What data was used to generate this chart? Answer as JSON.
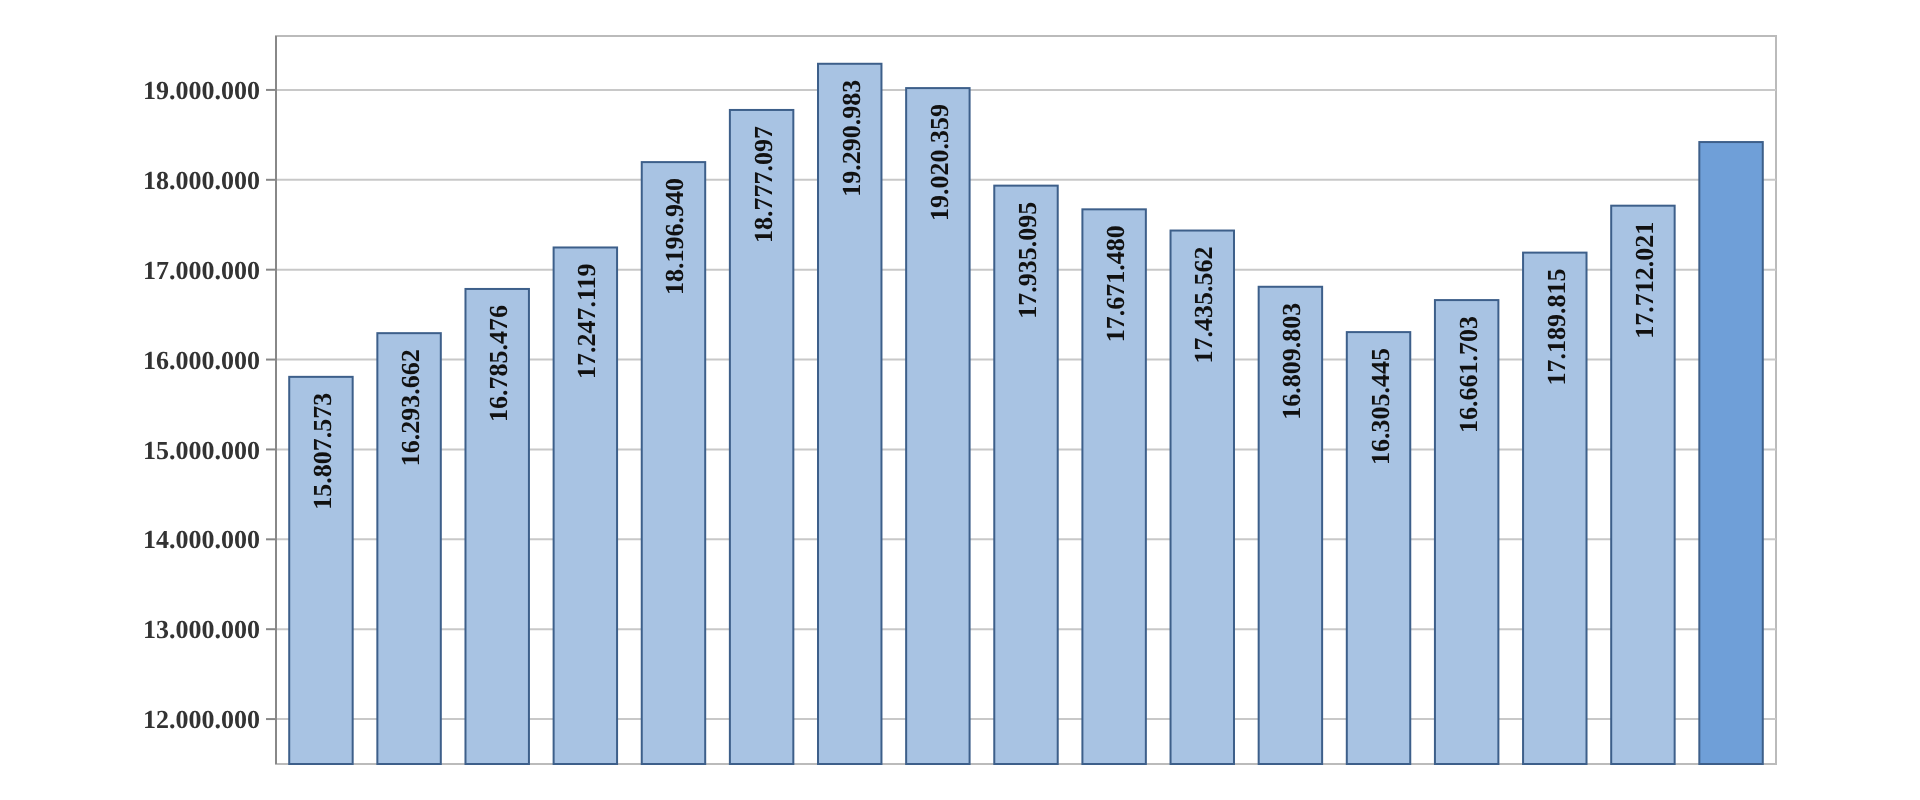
{
  "chart_data": {
    "type": "bar",
    "categories": [
      null,
      null,
      null,
      null,
      null,
      null,
      null,
      null,
      null,
      null,
      null,
      null,
      null,
      null,
      null,
      null,
      null
    ],
    "values": [
      15807573,
      16293662,
      16785476,
      17247119,
      18196940,
      18777097,
      19290983,
      19020359,
      17935095,
      17671480,
      17435562,
      16809803,
      16305445,
      16661703,
      17189815,
      17712021,
      18420000
    ],
    "value_labels": [
      "15.807.573",
      "16.293.662",
      "16.785.476",
      "17.247.119",
      "18.196.940",
      "18.777.097",
      "19.290.983",
      "19.020.359",
      "17.935.095",
      "17.671.480",
      "17.435.562",
      "16.809.803",
      "16.305.445",
      "16.661.703",
      "17.189.815",
      "17.712.021",
      null
    ],
    "colors": [
      "#a8c3e3",
      "#a8c3e3",
      "#a8c3e3",
      "#a8c3e3",
      "#a8c3e3",
      "#a8c3e3",
      "#a8c3e3",
      "#a8c3e3",
      "#a8c3e3",
      "#a8c3e3",
      "#a8c3e3",
      "#a8c3e3",
      "#a8c3e3",
      "#a8c3e3",
      "#a8c3e3",
      "#a8c3e3",
      "#6f9fd8"
    ],
    "ylim": [
      11500000,
      19600000
    ],
    "yticks": [
      {
        "value": 12000000,
        "label": "12.000.000"
      },
      {
        "value": 13000000,
        "label": "13.000.000"
      },
      {
        "value": 14000000,
        "label": "14.000.000"
      },
      {
        "value": 15000000,
        "label": "15.000.000"
      },
      {
        "value": 16000000,
        "label": "16.000.000"
      },
      {
        "value": 17000000,
        "label": "17.000.000"
      },
      {
        "value": 18000000,
        "label": "18.000.000"
      },
      {
        "value": 19000000,
        "label": "19.000.000"
      }
    ],
    "grid": "y"
  }
}
